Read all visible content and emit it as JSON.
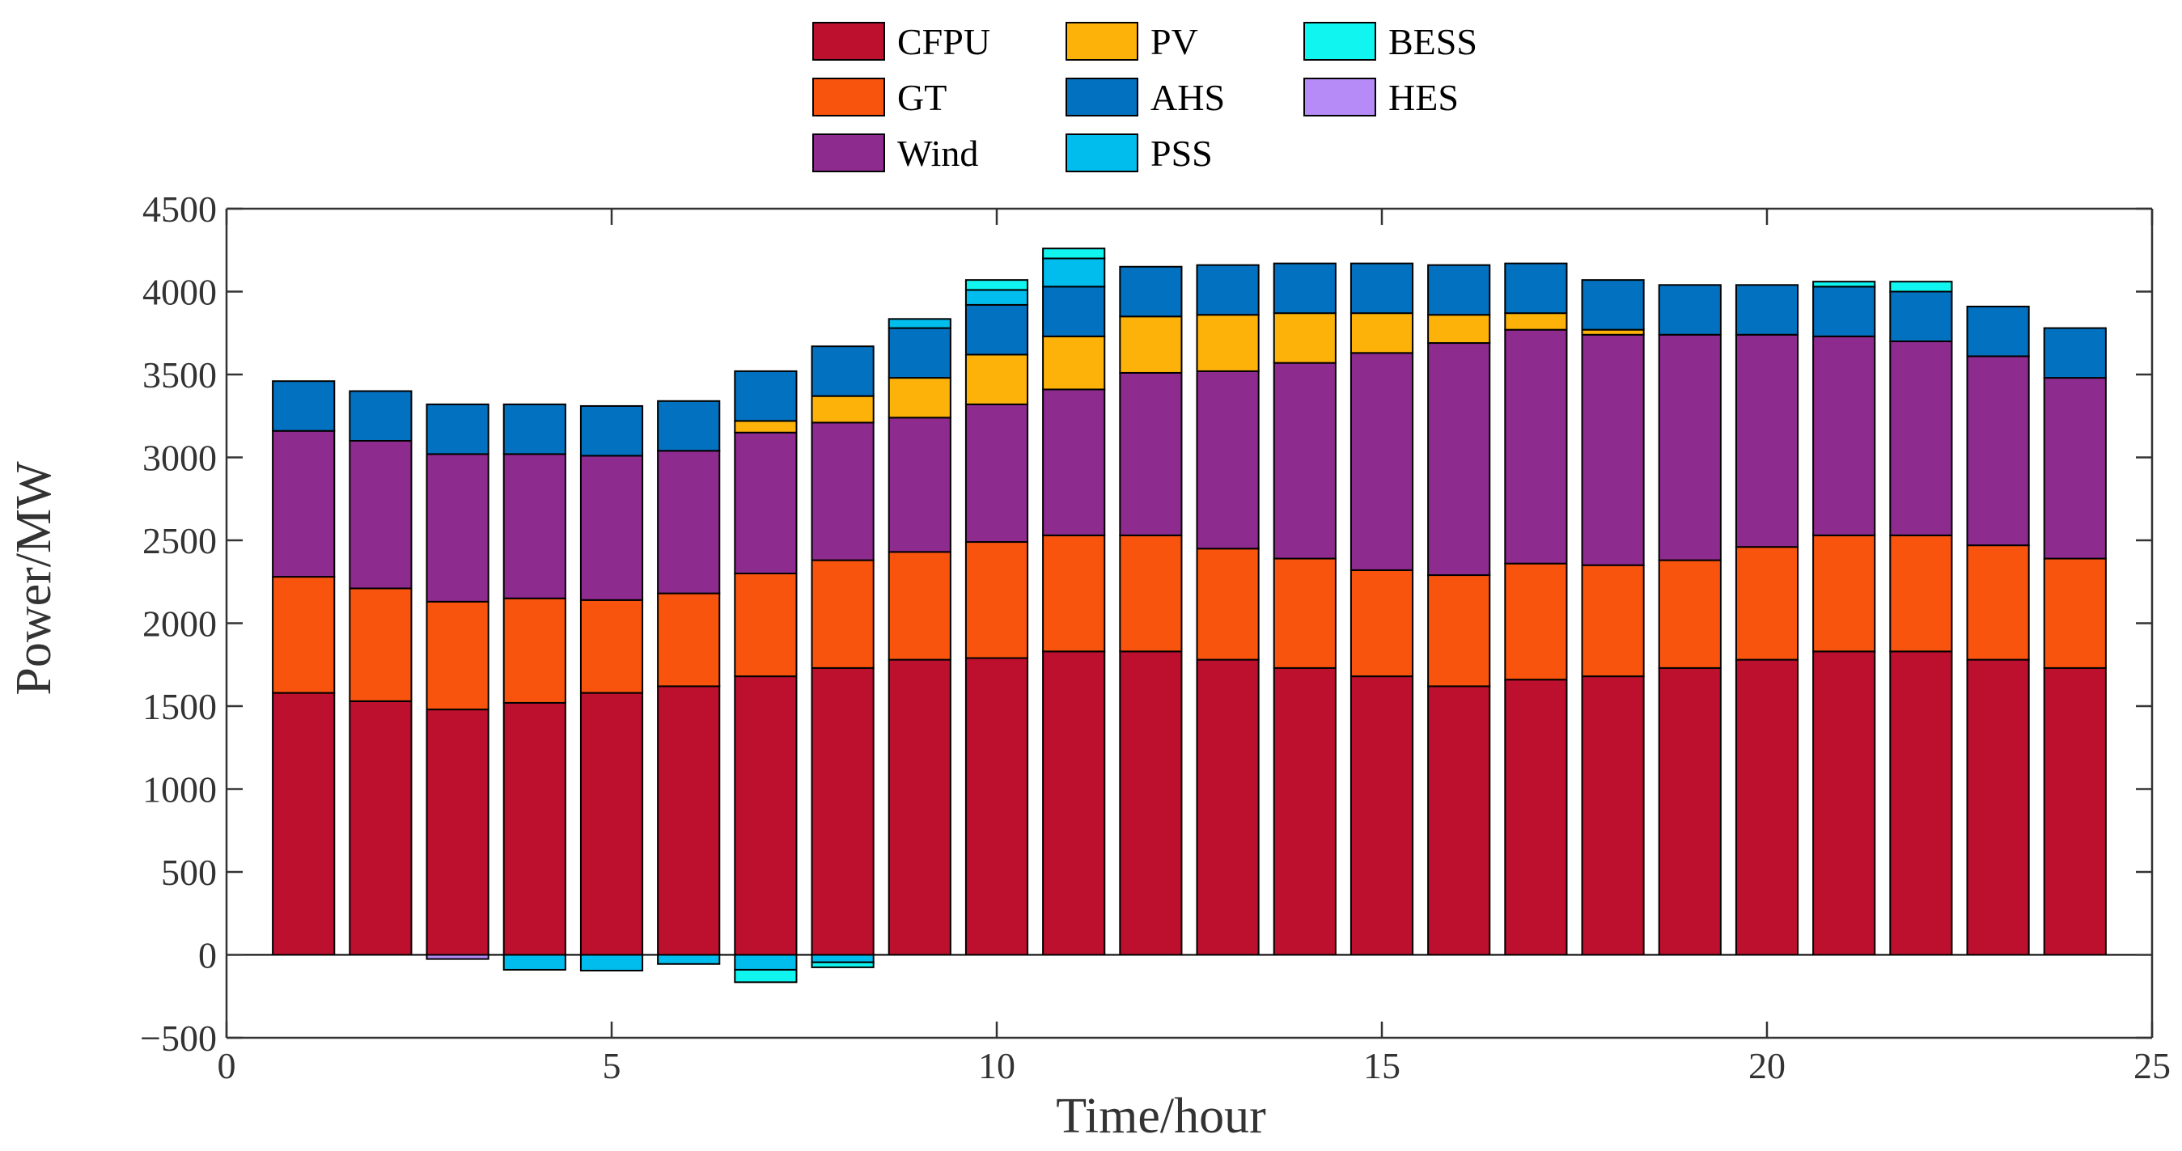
{
  "chart_data": {
    "type": "bar",
    "stacked": true,
    "x": [
      1,
      2,
      3,
      4,
      5,
      6,
      7,
      8,
      9,
      10,
      11,
      12,
      13,
      14,
      15,
      16,
      17,
      18,
      19,
      20,
      21,
      22,
      23,
      24
    ],
    "xlabel": "Time/hour",
    "ylabel": "Power/MW",
    "xlim": [
      0,
      25
    ],
    "ylim": [
      -500,
      4500
    ],
    "xticks": [
      0,
      5,
      10,
      15,
      20,
      25
    ],
    "yticks": [
      -500,
      0,
      500,
      1000,
      1500,
      2000,
      2500,
      3000,
      3500,
      4000,
      4500
    ],
    "legend_position": "top-center",
    "series": [
      {
        "name": "CFPU",
        "color": "#BD0F2E",
        "values": [
          1580,
          1530,
          1480,
          1520,
          1580,
          1620,
          1680,
          1730,
          1780,
          1790,
          1830,
          1830,
          1780,
          1730,
          1680,
          1620,
          1660,
          1680,
          1730,
          1780,
          1830,
          1830,
          1780,
          1730
        ]
      },
      {
        "name": "GT",
        "color": "#F9540E",
        "values": [
          700,
          680,
          650,
          630,
          560,
          560,
          620,
          650,
          650,
          700,
          700,
          700,
          670,
          660,
          640,
          670,
          700,
          670,
          650,
          680,
          700,
          700,
          690,
          660
        ]
      },
      {
        "name": "Wind",
        "color": "#8E2B8E",
        "values": [
          880,
          890,
          890,
          870,
          870,
          860,
          850,
          830,
          810,
          830,
          880,
          980,
          1070,
          1180,
          1310,
          1400,
          1410,
          1390,
          1360,
          1280,
          1200,
          1170,
          1140,
          1090
        ]
      },
      {
        "name": "PV",
        "color": "#FDB20A",
        "values": [
          0,
          0,
          0,
          0,
          0,
          0,
          70,
          160,
          240,
          300,
          320,
          340,
          340,
          300,
          240,
          170,
          100,
          30,
          0,
          0,
          0,
          0,
          0,
          0
        ]
      },
      {
        "name": "AHS",
        "color": "#0271C0",
        "values": [
          300,
          300,
          300,
          300,
          300,
          300,
          300,
          300,
          300,
          300,
          300,
          300,
          300,
          300,
          300,
          300,
          300,
          300,
          300,
          300,
          300,
          300,
          300,
          300
        ]
      },
      {
        "name": "PSS",
        "color": "#00BDED",
        "values": [
          0,
          0,
          0,
          -90,
          -95,
          -55,
          -90,
          -45,
          55,
          90,
          170,
          0,
          0,
          0,
          0,
          0,
          0,
          0,
          0,
          0,
          0,
          0,
          0,
          0
        ]
      },
      {
        "name": "BESS",
        "color": "#11F5F0",
        "values": [
          0,
          0,
          0,
          0,
          0,
          0,
          -75,
          -30,
          0,
          60,
          60,
          0,
          0,
          0,
          0,
          0,
          0,
          0,
          0,
          0,
          30,
          60,
          0,
          0
        ]
      },
      {
        "name": "HES",
        "color": "#B68AF7",
        "values": [
          0,
          0,
          -25,
          0,
          0,
          0,
          0,
          0,
          0,
          0,
          0,
          0,
          0,
          0,
          0,
          0,
          0,
          0,
          0,
          0,
          0,
          0,
          0,
          0
        ]
      }
    ]
  }
}
